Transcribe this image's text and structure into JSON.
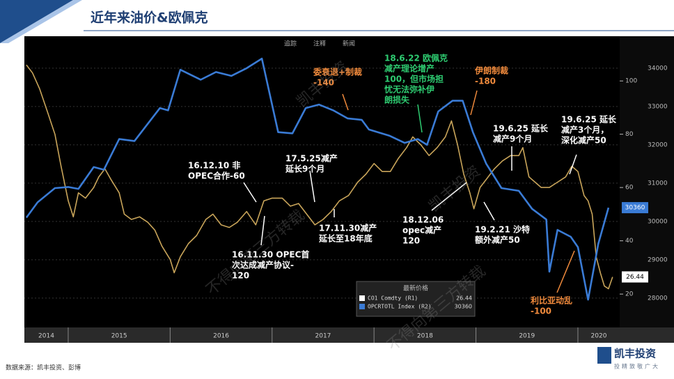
{
  "header": {
    "title": "近年来油价&欧佩克"
  },
  "footer": {
    "source": "数据来源：凯丰投资、彭博",
    "logo": "凯丰投资",
    "logo_sub": "投精致敬广大"
  },
  "toolbar": [
    "追踪",
    "注释",
    "新闻"
  ],
  "watermarks": [
    "凯丰投资",
    "不得向第三方转载",
    "凯丰投资",
    "不得向第三方转载"
  ],
  "chart_data": {
    "type": "line",
    "xticks": [
      2014,
      2015,
      2016,
      2017,
      2018,
      2019,
      2020
    ],
    "xlim": [
      2014.57,
      2020.41
    ],
    "ylim": [
      8,
      116
    ],
    "yticks": [
      20,
      40,
      60,
      80,
      100
    ],
    "y2lim": [
      27270,
      34780
    ],
    "y2ticks": [
      28000,
      29000,
      30000,
      31000,
      32000,
      33000,
      34000
    ],
    "grid": true,
    "legend_title": "最新价格",
    "series": [
      {
        "name": "CO1 Comdty  (R1)",
        "color": "#c9a55a",
        "legend_color": "#ffffff",
        "x": [
          2014.59,
          2014.65,
          2014.72,
          2014.8,
          2014.87,
          2014.93,
          2015.0,
          2015.05,
          2015.1,
          2015.17,
          2015.25,
          2015.3,
          2015.36,
          2015.42,
          2015.5,
          2015.55,
          2015.62,
          2015.7,
          2015.78,
          2015.85,
          2015.92,
          2016.0,
          2016.04,
          2016.1,
          2016.18,
          2016.26,
          2016.35,
          2016.42,
          2016.5,
          2016.58,
          2016.66,
          2016.75,
          2016.84,
          2016.92,
          2017.0,
          2017.1,
          2017.18,
          2017.26,
          2017.34,
          2017.42,
          2017.5,
          2017.58,
          2017.66,
          2017.75,
          2017.84,
          2017.92,
          2018.0,
          2018.08,
          2018.16,
          2018.24,
          2018.32,
          2018.38,
          2018.46,
          2018.54,
          2018.62,
          2018.7,
          2018.76,
          2018.82,
          2018.88,
          2018.94,
          2018.98,
          2019.04,
          2019.1,
          2019.18,
          2019.26,
          2019.34,
          2019.42,
          2019.46,
          2019.52,
          2019.58,
          2019.64,
          2019.72,
          2019.8,
          2019.88,
          2019.94,
          2020.0,
          2020.06,
          2020.1,
          2020.14,
          2020.18,
          2020.22,
          2020.26,
          2020.3,
          2020.34
        ],
        "values": [
          106,
          103,
          97,
          88,
          80,
          68,
          55,
          49,
          58,
          56,
          60,
          64,
          67,
          63,
          58,
          50,
          48,
          49,
          47,
          44,
          38,
          33,
          28,
          34,
          39,
          42,
          48,
          50,
          46,
          45,
          47,
          51,
          46,
          55,
          56,
          56,
          53,
          54,
          50,
          46,
          48,
          51,
          55,
          57,
          62,
          65,
          69,
          66,
          66,
          71,
          75,
          79,
          76,
          72,
          75,
          79,
          85,
          76,
          65,
          58,
          52,
          60,
          63,
          67,
          70,
          72,
          72,
          75,
          64,
          62,
          60,
          60,
          62,
          64,
          68,
          66,
          57,
          55,
          50,
          34,
          28,
          23,
          22,
          26.44
        ]
      },
      {
        "name": "OPCRTOTL Index  (R2)",
        "color": "#3a7bd5",
        "axis": "y2",
        "x": [
          2014.59,
          2014.7,
          2014.87,
          2015.0,
          2015.1,
          2015.25,
          2015.35,
          2015.5,
          2015.65,
          2015.9,
          2015.98,
          2016.1,
          2016.3,
          2016.45,
          2016.6,
          2016.75,
          2016.9,
          2017.06,
          2017.2,
          2017.33,
          2017.46,
          2017.6,
          2017.74,
          2017.88,
          2017.95,
          2018.15,
          2018.3,
          2018.43,
          2018.52,
          2018.63,
          2018.77,
          2018.87,
          2018.97,
          2019.1,
          2019.25,
          2019.42,
          2019.55,
          2019.69,
          2019.72,
          2019.8,
          2019.93,
          2020.0,
          2020.1,
          2020.2,
          2020.3
        ],
        "values": [
          30100,
          30500,
          30870,
          30900,
          30850,
          31420,
          31350,
          32150,
          32100,
          32960,
          32900,
          33960,
          33700,
          33900,
          33800,
          34000,
          34250,
          32330,
          32300,
          32960,
          33050,
          32900,
          32690,
          32650,
          32400,
          32240,
          32050,
          32150,
          32000,
          32870,
          33150,
          33150,
          32330,
          31510,
          30870,
          30800,
          30330,
          30050,
          28690,
          29780,
          29600,
          29330,
          27960,
          29420,
          30360
        ]
      }
    ],
    "annotations": [
      {
        "lines": [
          "16.12.10 非",
          "OPEC合作-60"
        ],
        "color": "#ffffff"
      },
      {
        "lines": [
          "16.11.30 OPEC首",
          "次达成减产协议-",
          "120"
        ],
        "color": "#ffffff"
      },
      {
        "lines": [
          "17.5.25减产",
          "延长9个月"
        ],
        "color": "#ffffff"
      },
      {
        "lines": [
          "17.11.30减产",
          "延长至18年底"
        ],
        "color": "#ffffff"
      },
      {
        "lines": [
          "委衰退+制裁",
          "-140"
        ],
        "color": "#f08a3c"
      },
      {
        "lines": [
          "18.6.22 欧佩克",
          "减产理论增产",
          "100，但市场担",
          "忧无法弥补伊",
          "朗损失"
        ],
        "color": "#2ecc71"
      },
      {
        "lines": [
          "伊朗制裁",
          "-180"
        ],
        "color": "#f08a3c"
      },
      {
        "lines": [
          "18.12.06",
          "opec减产",
          "120"
        ],
        "color": "#ffffff"
      },
      {
        "lines": [
          "19.2.21 沙特",
          "额外减产50"
        ],
        "color": "#ffffff"
      },
      {
        "lines": [
          "19.6.25 延长",
          "减产9个月"
        ],
        "color": "#ffffff"
      },
      {
        "lines": [
          "19.6.25 延长",
          "减产3个月，",
          "深化减产50"
        ],
        "color": "#ffffff"
      },
      {
        "lines": [
          "利比亚动乱",
          "-100"
        ],
        "color": "#f08a3c"
      }
    ]
  }
}
